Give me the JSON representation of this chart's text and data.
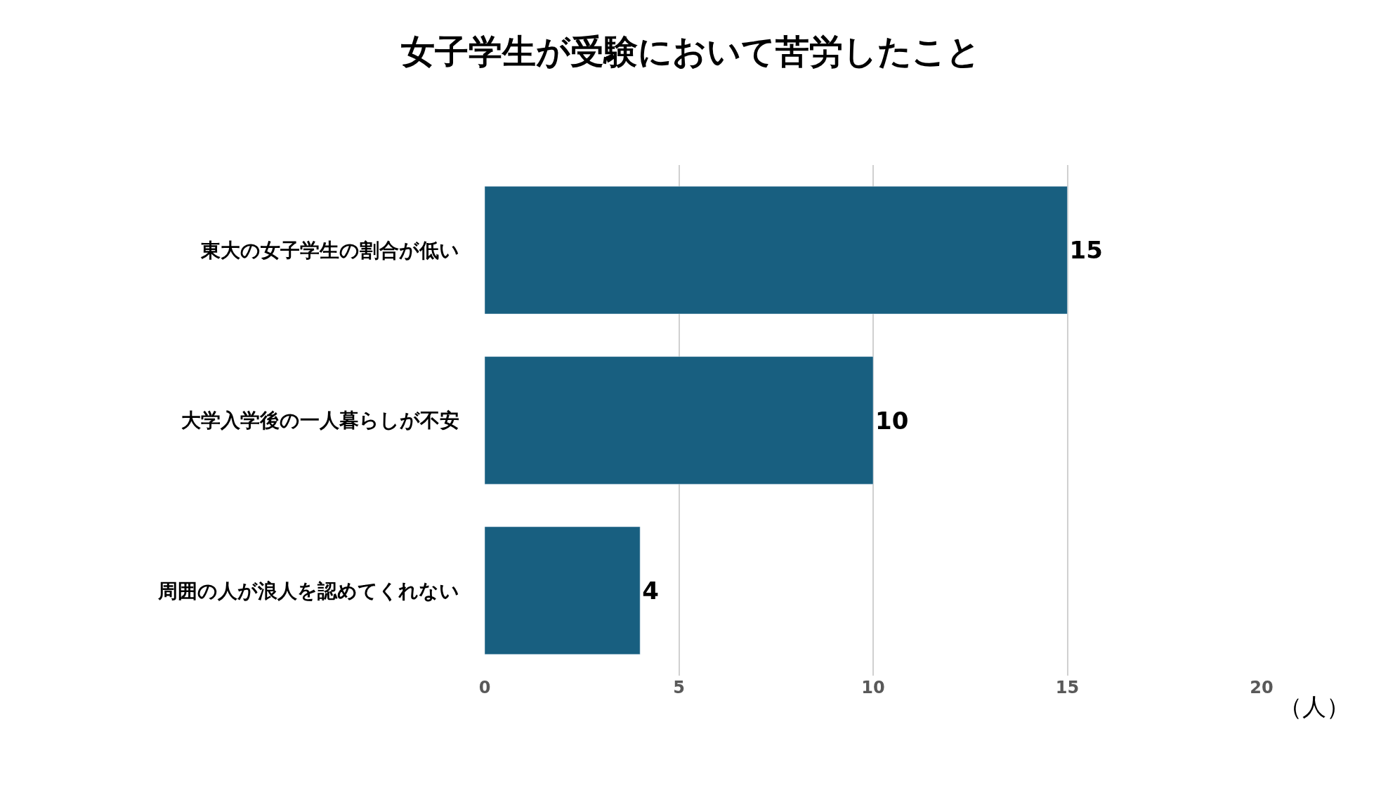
{
  "chart_data": {
    "type": "bar",
    "orientation": "horizontal",
    "title": "女子学生が受験において苦労したこと",
    "xlabel": "（人）",
    "categories": [
      "東大の女子学生の割合が低い",
      "大学入学後の一人暮らしが不安",
      "周囲の人が浪人を認めてくれない"
    ],
    "values": [
      15,
      10,
      4
    ],
    "color": "#185f80",
    "data_labels": true,
    "xlim": [
      0,
      20
    ],
    "xticks": [
      0,
      5,
      10,
      15,
      20
    ],
    "grid": "x"
  }
}
